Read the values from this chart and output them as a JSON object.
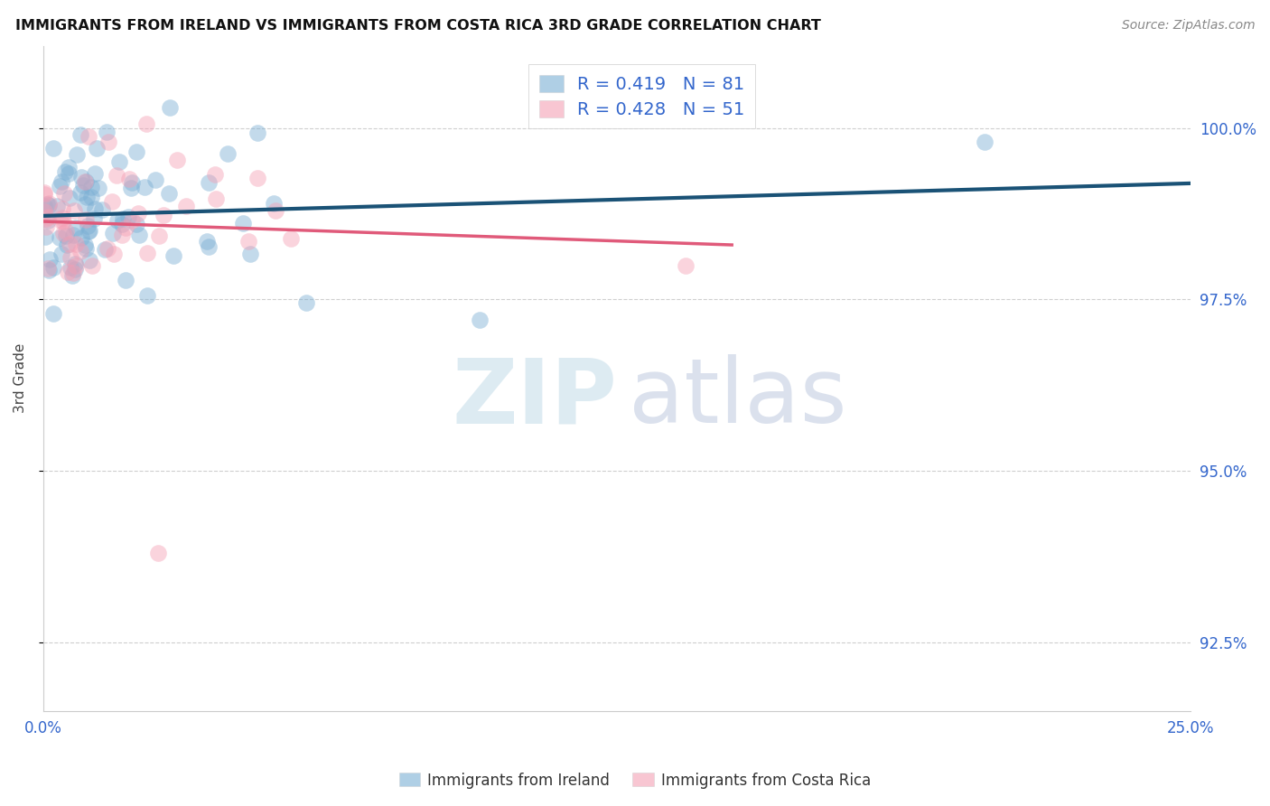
{
  "title": "IMMIGRANTS FROM IRELAND VS IMMIGRANTS FROM COSTA RICA 3RD GRADE CORRELATION CHART",
  "source": "Source: ZipAtlas.com",
  "ylabel": "3rd Grade",
  "xlim": [
    0.0,
    25.0
  ],
  "ylim": [
    91.5,
    101.2
  ],
  "xticks": [
    0.0,
    2.5,
    5.0,
    7.5,
    10.0,
    12.5,
    15.0,
    17.5,
    20.0,
    22.5,
    25.0
  ],
  "xticklabel_left": "0.0%",
  "xticklabel_right": "25.0%",
  "yticks": [
    92.5,
    95.0,
    97.5,
    100.0
  ],
  "yticklabels": [
    "92.5%",
    "95.0%",
    "97.5%",
    "100.0%"
  ],
  "ireland_color": "#7BAFD4",
  "costa_rica_color": "#F4A0B5",
  "ireland_line_color": "#1A5276",
  "costa_rica_line_color": "#E05A7A",
  "R_ireland": 0.419,
  "N_ireland": 81,
  "R_costa_rica": 0.428,
  "N_costa_rica": 51,
  "legend_ireland_label": "Immigrants from Ireland",
  "legend_cr_label": "Immigrants from Costa Rica",
  "watermark_zip": "ZIP",
  "watermark_atlas": "atlas",
  "background_color": "#FFFFFF",
  "grid_color": "#BBBBBB"
}
